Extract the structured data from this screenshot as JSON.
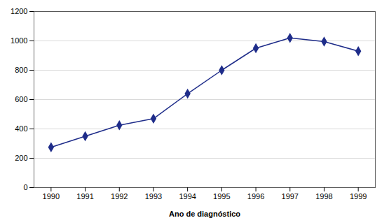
{
  "chart_data": {
    "type": "line",
    "x": [
      1990,
      1991,
      1992,
      1993,
      1994,
      1995,
      1996,
      1997,
      1998,
      1999
    ],
    "values": [
      275,
      350,
      425,
      470,
      640,
      800,
      950,
      1020,
      995,
      930
    ],
    "color": "#1F2D8A",
    "marker": "diamond",
    "xlabel": "Ano de diagnóstico",
    "xlim": [
      1989.5,
      1999.5
    ],
    "xticks": [
      1990,
      1991,
      1992,
      1993,
      1994,
      1995,
      1996,
      1997,
      1998,
      1999
    ],
    "ylim": [
      0,
      1200
    ],
    "yticks": [
      0,
      200,
      400,
      600,
      800,
      1000,
      1200
    ],
    "grid": true
  }
}
